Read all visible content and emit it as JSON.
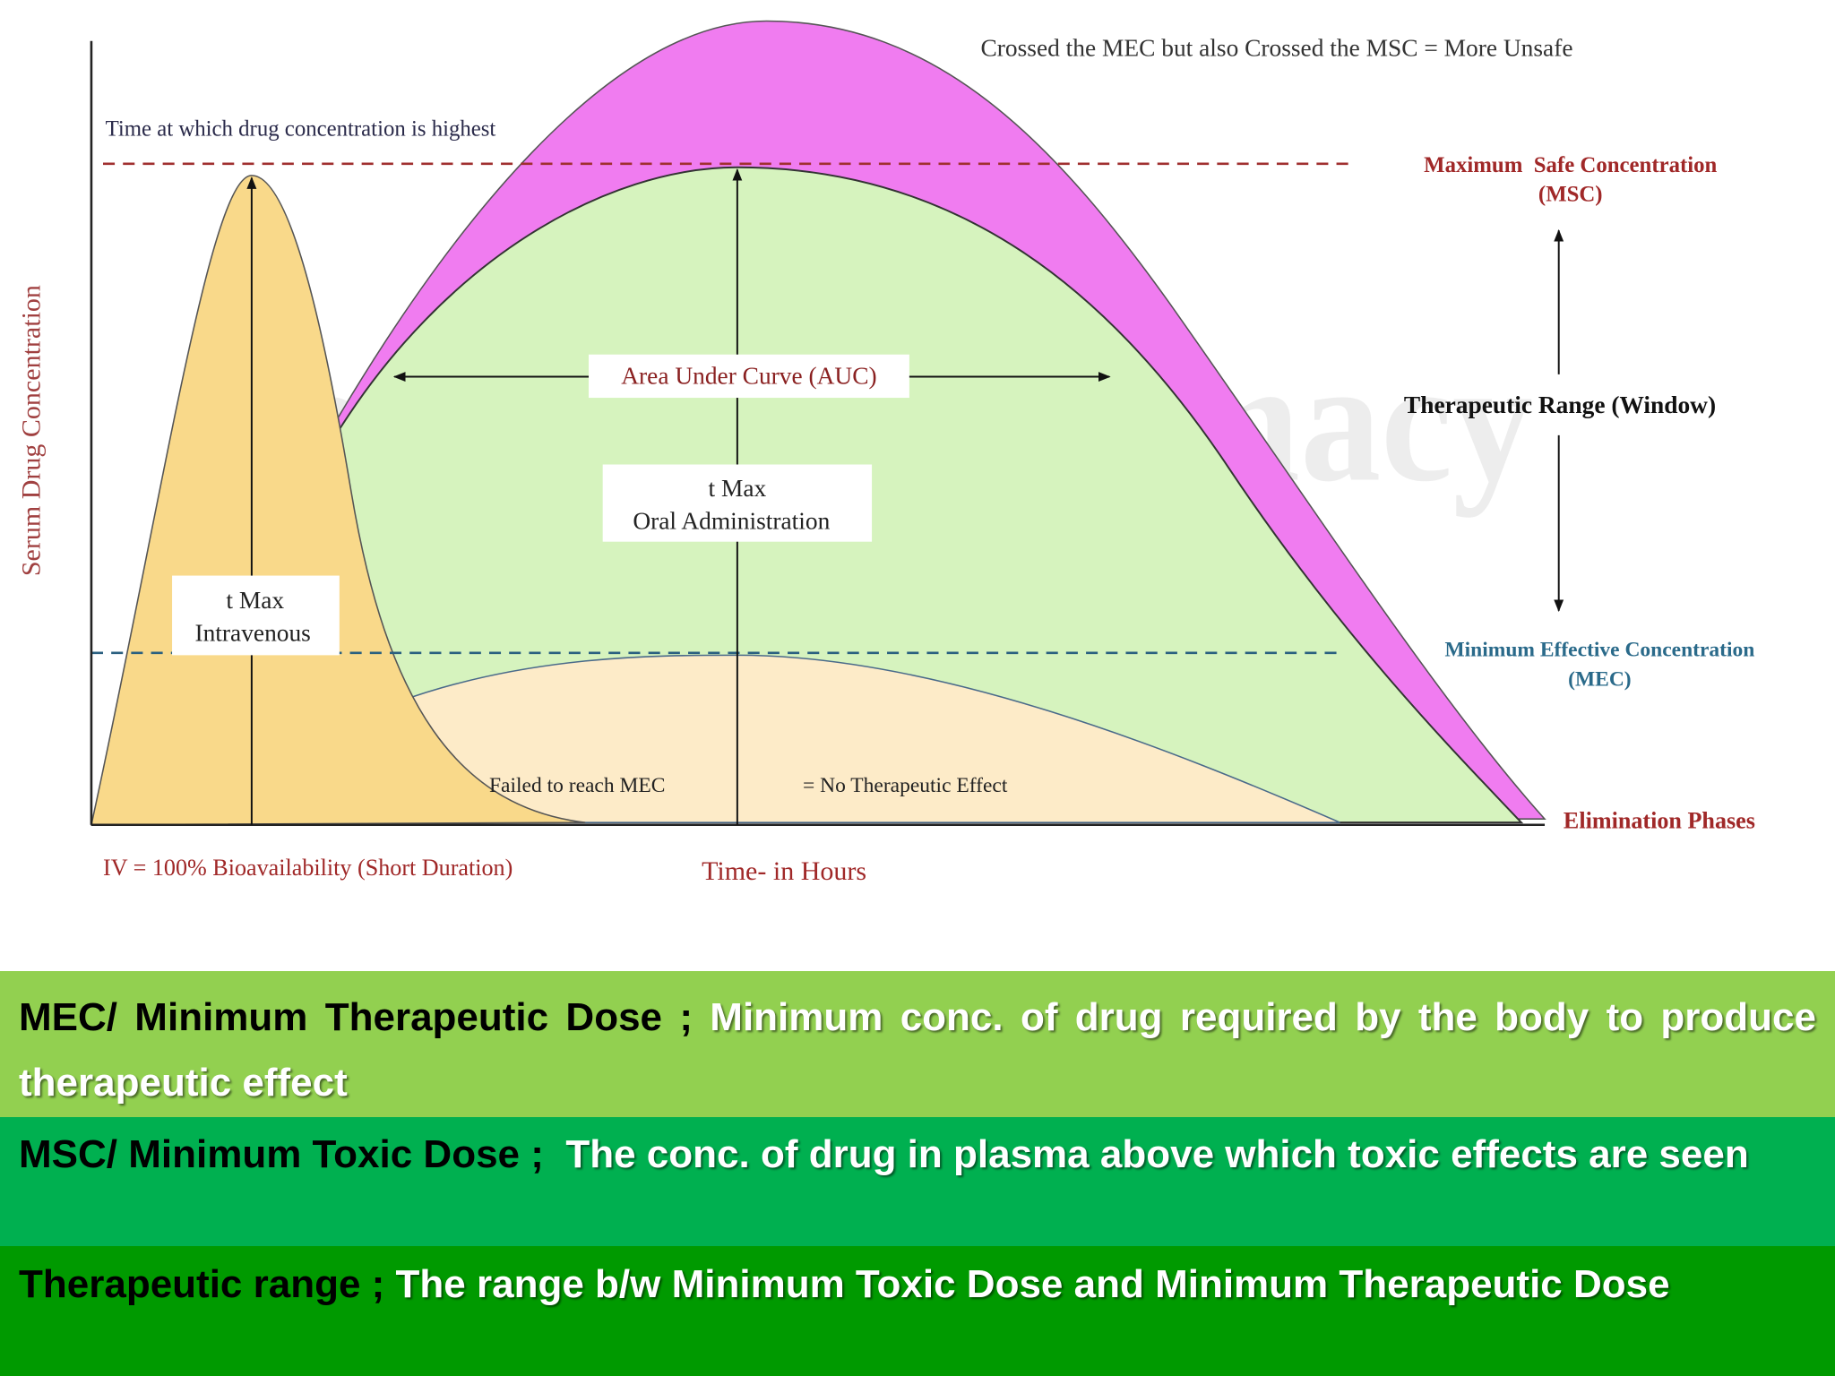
{
  "diagram": {
    "watermark": "Solution-Pharmacy",
    "y_axis_label": "Serum Drug Concentration",
    "x_axis_label": "Time- in Hours",
    "peak_note": "Time at which drug concentration is highest",
    "unsafe_note": "Crossed the MEC but also Crossed the MSC = More Unsafe",
    "msc_label": [
      "Maximum  Safe Concentration",
      "(MSC)"
    ],
    "therapeutic_range": "Therapeutic Range (Window)",
    "mec_label": [
      "Minimum Effective Concentration",
      "(MEC)"
    ],
    "elimination": "Elimination Phases",
    "auc": "Area Under Curve (AUC)",
    "tmax_oral": [
      "t Max",
      "Oral Administration"
    ],
    "tmax_iv": [
      "t Max",
      "Intravenous"
    ],
    "failed": "Failed to reach MEC",
    "no_effect": "= No Therapeutic Effect",
    "iv_note": "IV = 100% Bioavailability (Short Duration)"
  },
  "definitions": [
    {
      "term": "MEC/ Minimum Therapeutic Dose ;",
      "text": "Minimum conc. of drug required by the body to produce therapeutic effect"
    },
    {
      "term": "MSC/ Minimum Toxic Dose ;",
      "text": "The conc. of drug in plasma above which toxic effects are seen"
    },
    {
      "term": "Therapeutic range ;",
      "text": "The range b/w Minimum Toxic Dose and Minimum Therapeutic Dose"
    }
  ]
}
